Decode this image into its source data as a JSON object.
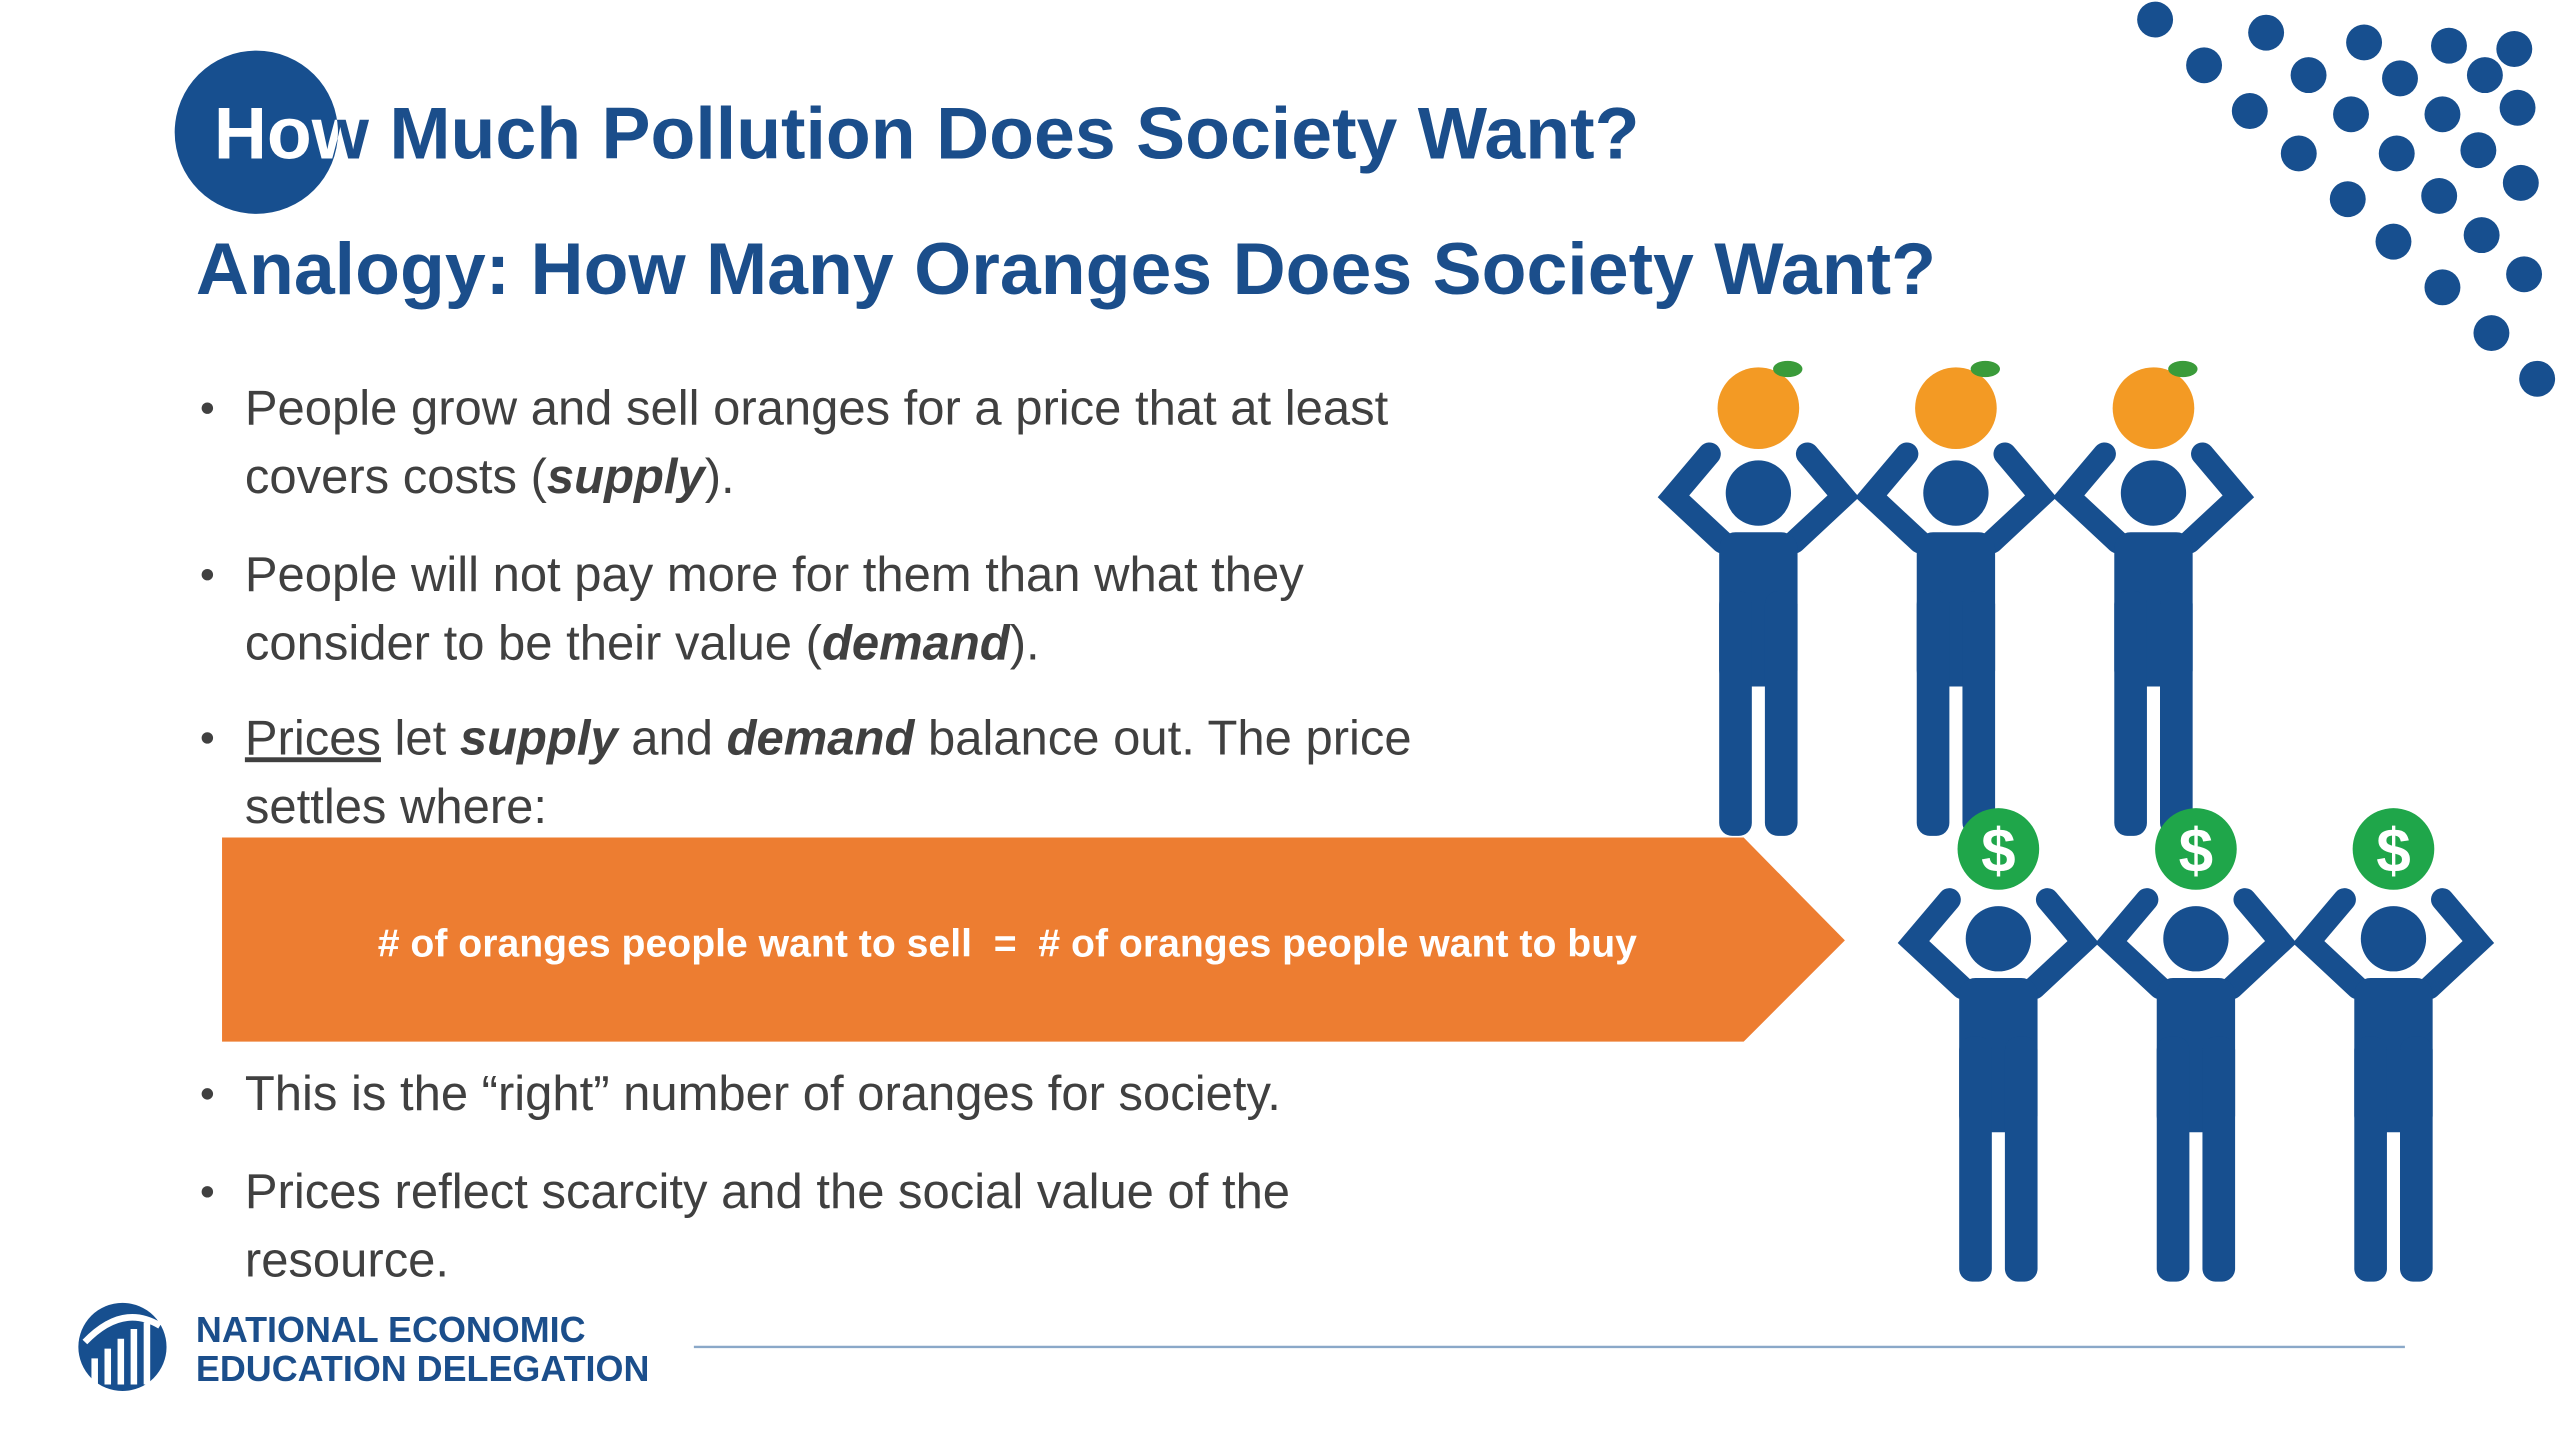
{
  "header": {
    "title": "How Much Pollution Does Society Want?",
    "subtitle": "Analogy: How Many Oranges Does Society Want?"
  },
  "bullets": [
    {
      "lines": [
        [
          {
            "text": "People grow and sell oranges for a price that at least"
          }
        ],
        [
          {
            "text": "covers costs ("
          },
          {
            "text": "supply",
            "style": "bold-italic"
          },
          {
            "text": ")."
          }
        ]
      ]
    },
    {
      "lines": [
        [
          {
            "text": "People will not pay more for them than what they"
          }
        ],
        [
          {
            "text": "consider to be their value ("
          },
          {
            "text": "demand",
            "style": "bold-italic"
          },
          {
            "text": ")."
          }
        ]
      ]
    },
    {
      "lines": [
        [
          {
            "text": "Prices",
            "style": "underline"
          },
          {
            "text": " let "
          },
          {
            "text": "supply",
            "style": "bold-italic"
          },
          {
            "text": " and "
          },
          {
            "text": "demand",
            "style": "bold-italic"
          },
          {
            "text": " balance out. The price"
          }
        ],
        [
          {
            "text": "settles where:"
          }
        ]
      ]
    },
    {
      "lines": [
        [
          {
            "text": "This is the “right” number of oranges for society."
          }
        ]
      ]
    },
    {
      "lines": [
        [
          {
            "text": "Prices reflect scarcity and the social value of the"
          }
        ],
        [
          {
            "text": "resource."
          }
        ]
      ]
    }
  ],
  "callout": "# of oranges people want to sell  =  # of oranges people want to buy",
  "dollar_symbol": "$",
  "logo": {
    "line1": "NATIONAL ECONOMIC",
    "line2": "EDUCATION DELEGATION"
  }
}
